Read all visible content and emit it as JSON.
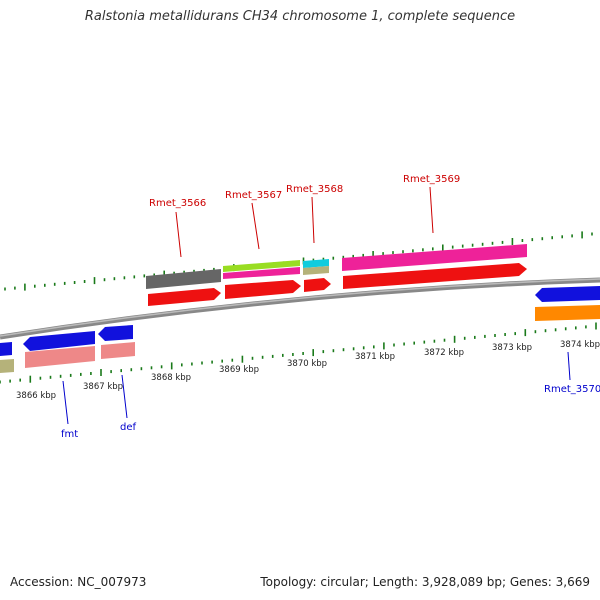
{
  "title": "Ralstonia metallidurans CH34 chromosome 1, complete sequence",
  "footer": {
    "accession": "Accession: NC_007973",
    "summary": "Topology: circular; Length: 3,928,089 bp; Genes: 3,669"
  },
  "scale_labels": [
    "3866 kbp",
    "3867 kbp",
    "3868 kbp",
    "3869 kbp",
    "3870 kbp",
    "3871 kbp",
    "3872 kbp",
    "3873 kbp",
    "3874 kbp"
  ],
  "gene_labels_top": [
    "Rmet_3566",
    "Rmet_3567",
    "Rmet_3568",
    "Rmet_3569"
  ],
  "gene_labels_bottom": [
    "fmt",
    "def",
    "Rmet_3570"
  ],
  "colors": {
    "label_top": "#cc0000",
    "label_bottom": "#0000cc",
    "tick": "#1a7a1a",
    "backbone": "#888888",
    "cds_red": "#ee1111",
    "cds_blue": "#1111dd",
    "gray": "#666666",
    "lime": "#99dd22",
    "magenta": "#ee2299",
    "cyan": "#11ccdd",
    "khaki": "#b5b27a",
    "pink": "#ee8888",
    "orange": "#ff8800"
  }
}
